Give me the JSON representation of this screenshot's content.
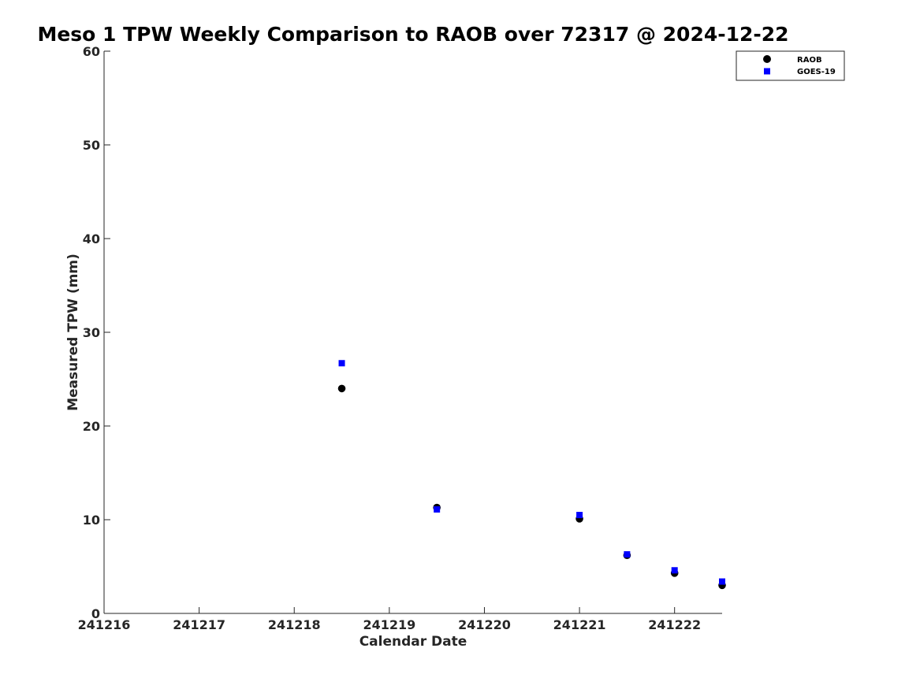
{
  "chart_data": {
    "type": "scatter",
    "title": "Meso 1 TPW Weekly Comparison to RAOB over 72317 @ 2024-12-22",
    "xlabel": "Calendar Date",
    "ylabel": "Measured TPW (mm)",
    "xlim": [
      241216,
      241222.5
    ],
    "ylim": [
      0,
      60
    ],
    "x_ticks": [
      241216,
      241217,
      241218,
      241219,
      241220,
      241221,
      241222
    ],
    "x_tick_labels": [
      "241216",
      "241217",
      "241218",
      "241219",
      "241220",
      "241221",
      "241222"
    ],
    "y_ticks": [
      0,
      10,
      20,
      30,
      40,
      50,
      60
    ],
    "y_tick_labels": [
      "0",
      "10",
      "20",
      "30",
      "40",
      "50",
      "60"
    ],
    "grid": false,
    "legend_position": "top-right",
    "series": [
      {
        "name": "RAOB",
        "marker": "circle",
        "color": "#000000",
        "points": [
          {
            "x": 241218.5,
            "y": 24.0
          },
          {
            "x": 241219.5,
            "y": 11.3
          },
          {
            "x": 241221.0,
            "y": 10.1
          },
          {
            "x": 241221.5,
            "y": 6.2
          },
          {
            "x": 241222.0,
            "y": 4.3
          },
          {
            "x": 241222.5,
            "y": 3.0
          }
        ]
      },
      {
        "name": "GOES-19",
        "marker": "square",
        "color": "#0000ff",
        "points": [
          {
            "x": 241218.5,
            "y": 26.7
          },
          {
            "x": 241219.5,
            "y": 11.1
          },
          {
            "x": 241221.0,
            "y": 10.5
          },
          {
            "x": 241221.5,
            "y": 6.3
          },
          {
            "x": 241222.0,
            "y": 4.6
          },
          {
            "x": 241222.5,
            "y": 3.4
          }
        ]
      }
    ]
  }
}
